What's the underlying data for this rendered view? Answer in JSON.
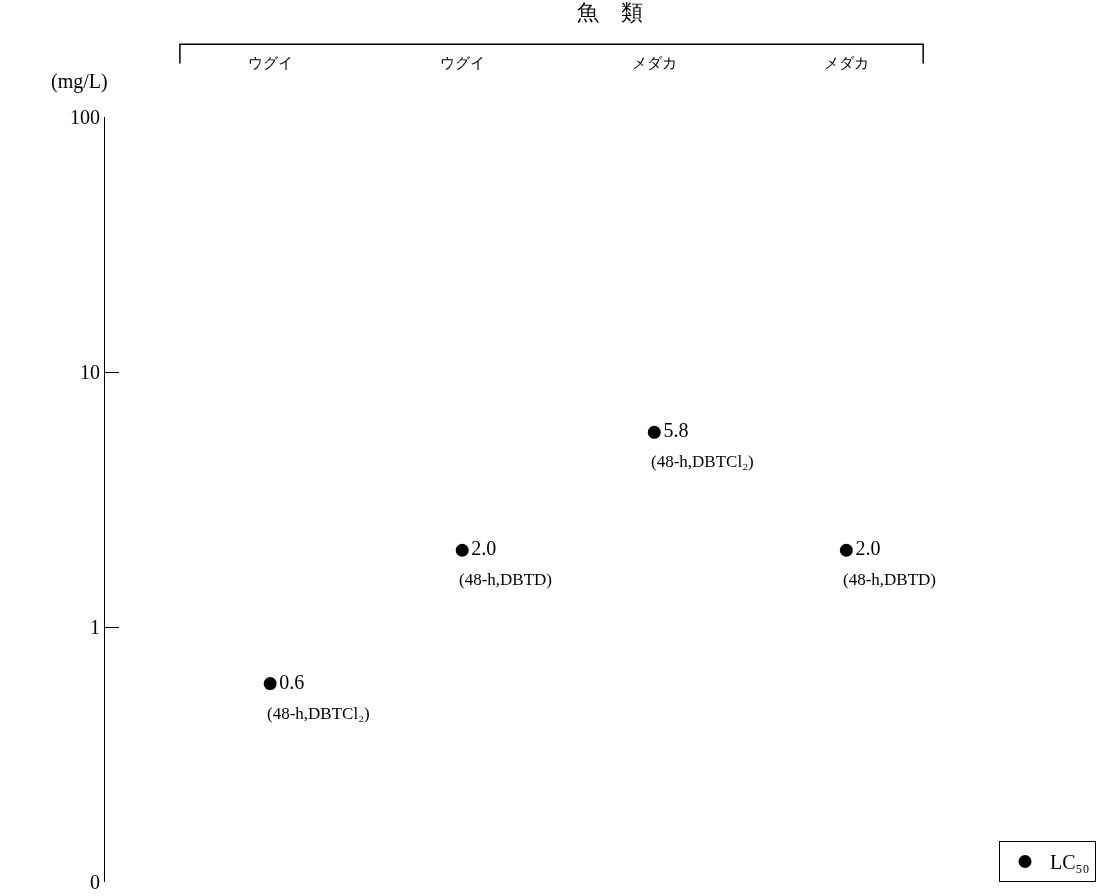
{
  "chart_data": {
    "type": "scatter",
    "title": "魚　類",
    "ylabel": "(mg/L)",
    "categories": [
      "ウグイ",
      "ウグイ",
      "メダカ",
      "メダカ"
    ],
    "series": [
      {
        "name": "LC₅₀",
        "color": "#000000",
        "values": [
          0.6,
          2.0,
          5.8,
          2.0
        ],
        "value_labels": [
          "0.6",
          "2.0",
          "5.8",
          "2.0"
        ]
      }
    ],
    "annotations": [
      "(48-h,DBTCl₂)",
      "(48-h,DBTD)",
      "(48-h,DBTCl₂)",
      "(48-h,DBTD)"
    ],
    "log": "y",
    "ylim": [
      0.1,
      100
    ],
    "yticks": [
      {
        "value": 0.1,
        "label": "0"
      },
      1,
      10,
      100
    ],
    "marker": "circle",
    "legend": "bottom right"
  }
}
